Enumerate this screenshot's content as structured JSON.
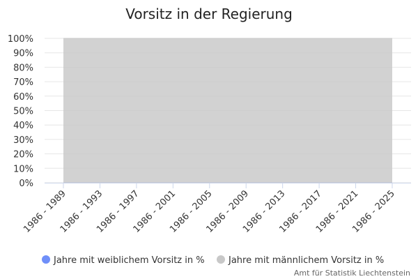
{
  "chart_data": {
    "type": "area",
    "stacking": "percent",
    "title": "Vorsitz in der Regierung",
    "categories": [
      "1986 - 1989",
      "1986 - 1993",
      "1986 - 1997",
      "1986 - 2001",
      "1986 - 2005",
      "1986 - 2009",
      "1986 - 2013",
      "1986 - 2017",
      "1986 - 2021",
      "1986 - 2025"
    ],
    "series": [
      {
        "name": "Jahre mit weiblichem Vorsitz in %",
        "color": "#6f8ff9",
        "values": [
          0,
          0,
          0,
          0,
          0,
          0,
          0,
          0,
          0,
          0
        ]
      },
      {
        "name": "Jahre mit männlichem Vorsitz in %",
        "color": "#c8c8c8",
        "values": [
          100,
          100,
          100,
          100,
          100,
          100,
          100,
          100,
          100,
          100
        ]
      }
    ],
    "yticks": [
      "0%",
      "10%",
      "20%",
      "30%",
      "40%",
      "50%",
      "60%",
      "70%",
      "80%",
      "90%",
      "100%"
    ],
    "ylim": [
      0,
      100
    ],
    "grid": true,
    "legend": "bottom-center",
    "credit": "Amt für Statistik Liechtenstein"
  }
}
